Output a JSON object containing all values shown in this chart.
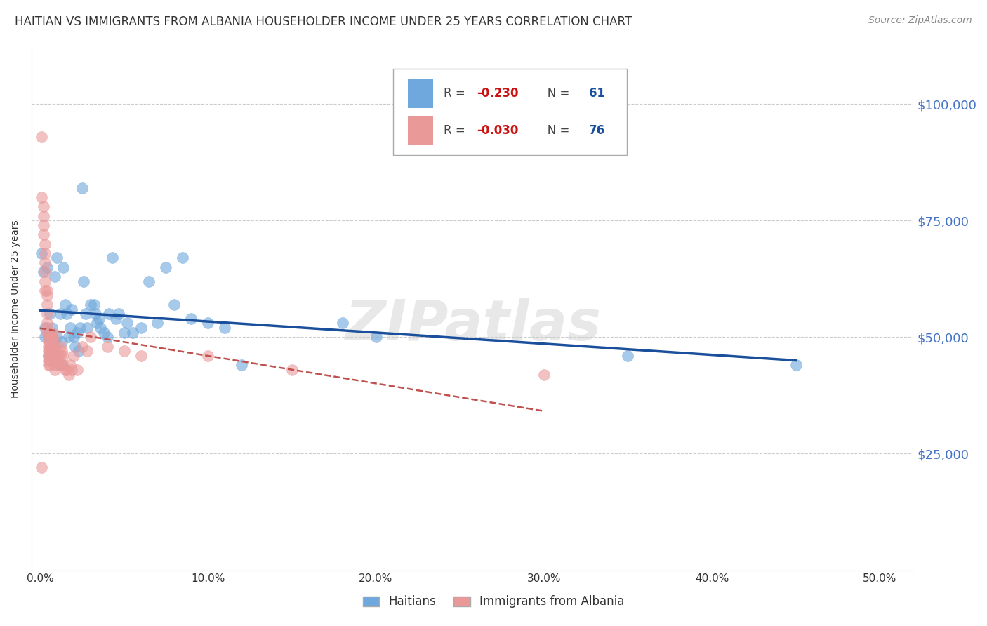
{
  "title": "HAITIAN VS IMMIGRANTS FROM ALBANIA HOUSEHOLDER INCOME UNDER 25 YEARS CORRELATION CHART",
  "source": "Source: ZipAtlas.com",
  "ylabel": "Householder Income Under 25 years",
  "xlabel_ticks": [
    "0.0%",
    "10.0%",
    "20.0%",
    "30.0%",
    "40.0%",
    "50.0%"
  ],
  "xlabel_vals": [
    0.0,
    0.1,
    0.2,
    0.3,
    0.4,
    0.5
  ],
  "ylabel_ticks": [
    "$25,000",
    "$50,000",
    "$75,000",
    "$100,000"
  ],
  "ylabel_vals": [
    25000,
    50000,
    75000,
    100000
  ],
  "ylim": [
    0,
    112000
  ],
  "xlim": [
    -0.005,
    0.52
  ],
  "haitian_color": "#6fa8dc",
  "albania_color": "#ea9999",
  "trend_haitian_color": "#1a4f9c",
  "trend_albania_color": "#c0504d",
  "haitian_scatter": [
    [
      0.001,
      68000
    ],
    [
      0.002,
      64000
    ],
    [
      0.003,
      52000
    ],
    [
      0.003,
      50000
    ],
    [
      0.004,
      65000
    ],
    [
      0.005,
      50000
    ],
    [
      0.005,
      46000
    ],
    [
      0.006,
      55000
    ],
    [
      0.007,
      52000
    ],
    [
      0.008,
      49000
    ],
    [
      0.008,
      47000
    ],
    [
      0.009,
      63000
    ],
    [
      0.01,
      67000
    ],
    [
      0.01,
      50000
    ],
    [
      0.012,
      55000
    ],
    [
      0.012,
      44000
    ],
    [
      0.013,
      49000
    ],
    [
      0.014,
      65000
    ],
    [
      0.015,
      57000
    ],
    [
      0.016,
      55000
    ],
    [
      0.017,
      50000
    ],
    [
      0.018,
      52000
    ],
    [
      0.019,
      56000
    ],
    [
      0.02,
      50000
    ],
    [
      0.021,
      48000
    ],
    [
      0.022,
      51000
    ],
    [
      0.023,
      47000
    ],
    [
      0.024,
      52000
    ],
    [
      0.025,
      82000
    ],
    [
      0.026,
      62000
    ],
    [
      0.027,
      55000
    ],
    [
      0.028,
      52000
    ],
    [
      0.03,
      57000
    ],
    [
      0.032,
      57000
    ],
    [
      0.033,
      55000
    ],
    [
      0.034,
      53000
    ],
    [
      0.035,
      54000
    ],
    [
      0.036,
      52000
    ],
    [
      0.038,
      51000
    ],
    [
      0.04,
      50000
    ],
    [
      0.041,
      55000
    ],
    [
      0.043,
      67000
    ],
    [
      0.045,
      54000
    ],
    [
      0.047,
      55000
    ],
    [
      0.05,
      51000
    ],
    [
      0.052,
      53000
    ],
    [
      0.055,
      51000
    ],
    [
      0.06,
      52000
    ],
    [
      0.065,
      62000
    ],
    [
      0.07,
      53000
    ],
    [
      0.075,
      65000
    ],
    [
      0.08,
      57000
    ],
    [
      0.085,
      67000
    ],
    [
      0.09,
      54000
    ],
    [
      0.1,
      53000
    ],
    [
      0.11,
      52000
    ],
    [
      0.12,
      44000
    ],
    [
      0.18,
      53000
    ],
    [
      0.2,
      50000
    ],
    [
      0.35,
      46000
    ],
    [
      0.45,
      44000
    ]
  ],
  "albania_scatter": [
    [
      0.001,
      93000
    ],
    [
      0.001,
      80000
    ],
    [
      0.002,
      78000
    ],
    [
      0.002,
      76000
    ],
    [
      0.002,
      74000
    ],
    [
      0.002,
      72000
    ],
    [
      0.003,
      70000
    ],
    [
      0.003,
      68000
    ],
    [
      0.003,
      66000
    ],
    [
      0.003,
      64000
    ],
    [
      0.003,
      62000
    ],
    [
      0.003,
      60000
    ],
    [
      0.004,
      60000
    ],
    [
      0.004,
      59000
    ],
    [
      0.004,
      57000
    ],
    [
      0.004,
      55000
    ],
    [
      0.004,
      53000
    ],
    [
      0.004,
      52000
    ],
    [
      0.004,
      51000
    ],
    [
      0.005,
      50000
    ],
    [
      0.005,
      49000
    ],
    [
      0.005,
      48000
    ],
    [
      0.005,
      47000
    ],
    [
      0.005,
      46000
    ],
    [
      0.005,
      45000
    ],
    [
      0.005,
      44000
    ],
    [
      0.006,
      50000
    ],
    [
      0.006,
      49000
    ],
    [
      0.006,
      48000
    ],
    [
      0.006,
      47000
    ],
    [
      0.006,
      46000
    ],
    [
      0.006,
      45000
    ],
    [
      0.006,
      44000
    ],
    [
      0.007,
      51000
    ],
    [
      0.007,
      50000
    ],
    [
      0.007,
      49000
    ],
    [
      0.007,
      48000
    ],
    [
      0.007,
      47000
    ],
    [
      0.007,
      46000
    ],
    [
      0.008,
      50000
    ],
    [
      0.008,
      49000
    ],
    [
      0.008,
      47000
    ],
    [
      0.008,
      46000
    ],
    [
      0.009,
      48000
    ],
    [
      0.009,
      46000
    ],
    [
      0.009,
      44000
    ],
    [
      0.009,
      43000
    ],
    [
      0.01,
      47000
    ],
    [
      0.01,
      46000
    ],
    [
      0.01,
      45000
    ],
    [
      0.011,
      46000
    ],
    [
      0.011,
      44000
    ],
    [
      0.012,
      48000
    ],
    [
      0.012,
      46000
    ],
    [
      0.013,
      47000
    ],
    [
      0.013,
      44000
    ],
    [
      0.014,
      46000
    ],
    [
      0.014,
      44000
    ],
    [
      0.015,
      43000
    ],
    [
      0.016,
      43000
    ],
    [
      0.017,
      42000
    ],
    [
      0.018,
      44000
    ],
    [
      0.019,
      43000
    ],
    [
      0.02,
      46000
    ],
    [
      0.022,
      43000
    ],
    [
      0.025,
      48000
    ],
    [
      0.028,
      47000
    ],
    [
      0.03,
      50000
    ],
    [
      0.04,
      48000
    ],
    [
      0.05,
      47000
    ],
    [
      0.06,
      46000
    ],
    [
      0.1,
      46000
    ],
    [
      0.15,
      43000
    ],
    [
      0.3,
      42000
    ],
    [
      0.001,
      22000
    ]
  ],
  "background_color": "#ffffff",
  "grid_color": "#cccccc",
  "axis_color": "#cccccc",
  "right_label_color": "#4472c4",
  "title_fontsize": 12,
  "label_fontsize": 10,
  "tick_fontsize": 11,
  "source_fontsize": 10
}
